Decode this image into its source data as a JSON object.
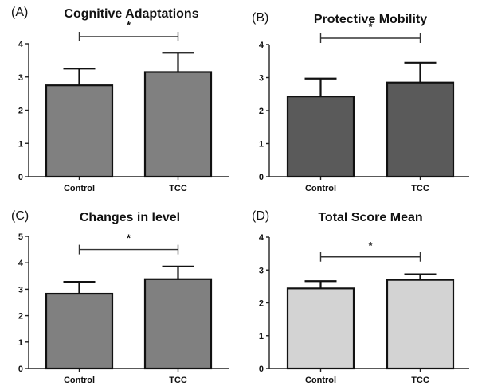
{
  "chart_data": [
    {
      "type": "bar",
      "panel_label": "(A)",
      "title": "Cognitive Adaptations",
      "xlabel": "",
      "ylabel": "",
      "categories": [
        "Control",
        "TCC"
      ],
      "values": [
        2.75,
        3.15
      ],
      "error_upper": [
        3.25,
        3.73
      ],
      "ylim": [
        0,
        4
      ],
      "yticks": [
        0,
        1,
        2,
        3,
        4
      ],
      "bar_color": "#808080",
      "significance": {
        "between": [
          "Control",
          "TCC"
        ],
        "label": "*"
      },
      "grid": false
    },
    {
      "type": "bar",
      "panel_label": "(B)",
      "title": "Protective Mobility",
      "xlabel": "",
      "ylabel": "",
      "categories": [
        "Control",
        "TCC"
      ],
      "values": [
        2.43,
        2.85
      ],
      "error_upper": [
        2.97,
        3.45
      ],
      "ylim": [
        0,
        4
      ],
      "yticks": [
        0,
        1,
        2,
        3,
        4
      ],
      "bar_color": "#5a5a5a",
      "significance": {
        "between": [
          "Control",
          "TCC"
        ],
        "label": "*"
      },
      "grid": false
    },
    {
      "type": "bar",
      "panel_label": "(C)",
      "title": "Changes in level",
      "xlabel": "",
      "ylabel": "",
      "categories": [
        "Control",
        "TCC"
      ],
      "values": [
        2.83,
        3.38
      ],
      "error_upper": [
        3.28,
        3.86
      ],
      "ylim": [
        0,
        5
      ],
      "yticks": [
        0,
        1,
        2,
        3,
        4,
        5
      ],
      "bar_color": "#808080",
      "significance": {
        "between": [
          "Control",
          "TCC"
        ],
        "label": "*"
      },
      "grid": false
    },
    {
      "type": "bar",
      "panel_label": "(D)",
      "title": "Total Score Mean",
      "xlabel": "",
      "ylabel": "",
      "categories": [
        "Control",
        "TCC"
      ],
      "values": [
        2.44,
        2.7
      ],
      "error_upper": [
        2.66,
        2.87
      ],
      "ylim": [
        0,
        4
      ],
      "yticks": [
        0,
        1,
        2,
        3,
        4
      ],
      "bar_color": "#d3d3d3",
      "significance": {
        "between": [
          "Control",
          "TCC"
        ],
        "label": "*"
      },
      "grid": false
    }
  ]
}
